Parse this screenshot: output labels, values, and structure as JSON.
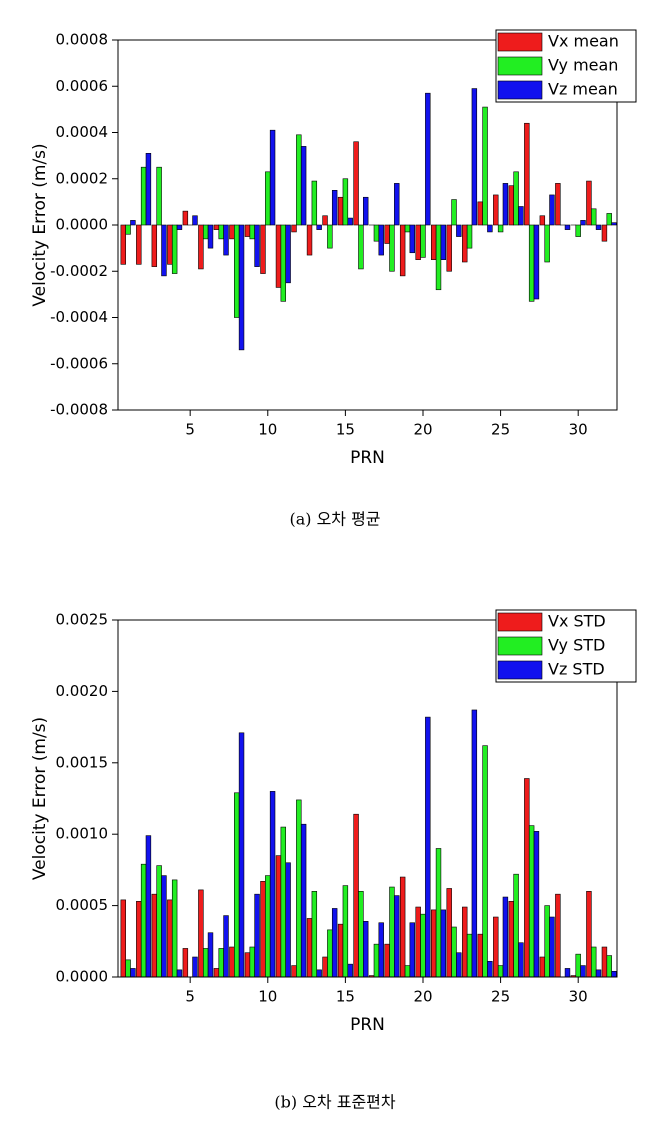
{
  "chart_data": [
    {
      "type": "bar",
      "caption": "(a) 오차 평균",
      "xlabel": "PRN",
      "ylabel": "Velocity Error (m/s)",
      "x": [
        1,
        2,
        3,
        4,
        5,
        6,
        7,
        8,
        9,
        10,
        11,
        12,
        13,
        14,
        15,
        16,
        17,
        18,
        19,
        20,
        21,
        22,
        23,
        24,
        25,
        26,
        27,
        28,
        29,
        30,
        31,
        32
      ],
      "series": [
        {
          "name": "Vx mean",
          "color": "#ee1c1c",
          "values": [
            -0.00017,
            -0.00017,
            -0.00018,
            -0.00017,
            6e-05,
            -0.00019,
            -2e-05,
            -6e-05,
            -5e-05,
            -0.00021,
            -0.00027,
            -3e-05,
            -0.00013,
            4e-05,
            0.00012,
            0.00036,
            0,
            -8e-05,
            -0.00022,
            -0.00015,
            -0.00015,
            -0.0002,
            -0.00016,
            0.0001,
            0.00013,
            0.00017,
            0.00044,
            4e-05,
            0.00018,
            0,
            0.00019,
            -7e-05
          ]
        },
        {
          "name": "Vy mean",
          "color": "#22ee22",
          "values": [
            -4e-05,
            0.00025,
            0.00025,
            -0.00021,
            0,
            -6e-05,
            -6e-05,
            -0.0004,
            -6e-05,
            0.00023,
            -0.00033,
            0.00039,
            0.00019,
            -0.0001,
            0.0002,
            -0.00019,
            -7e-05,
            -0.0002,
            -3e-05,
            -0.00014,
            -0.00028,
            0.00011,
            -0.0001,
            0.00051,
            -3e-05,
            0.00023,
            -0.00033,
            -0.00016,
            0,
            -5e-05,
            7e-05,
            5e-05
          ]
        },
        {
          "name": "Vz mean",
          "color": "#1212ee",
          "values": [
            2e-05,
            0.00031,
            -0.00022,
            -2e-05,
            4e-05,
            -0.0001,
            -0.00013,
            -0.00054,
            -0.00018,
            0.00041,
            -0.00025,
            0.00034,
            -2e-05,
            0.00015,
            3e-05,
            0.00012,
            -0.00013,
            0.00018,
            -0.00012,
            0.00057,
            -0.00015,
            -5e-05,
            0.00059,
            -3e-05,
            0.00018,
            8e-05,
            -0.00032,
            0.00013,
            -2e-05,
            2e-05,
            -2e-05,
            1e-05
          ]
        }
      ],
      "xlim": [
        0.35,
        32.5
      ],
      "xticks": [
        5,
        10,
        15,
        20,
        25,
        30
      ],
      "ylim": [
        -0.0008,
        0.0008
      ],
      "yticks": [
        -0.0008,
        -0.0006,
        -0.0004,
        -0.0002,
        {
          "value": 0,
          "label": "0.0000"
        },
        0.0002,
        0.0004,
        0.0006,
        0.0008
      ],
      "legend": "upper right"
    },
    {
      "type": "bar",
      "caption": "(b) 오차 표준편차",
      "xlabel": "PRN",
      "ylabel": "Velocity Error (m/s)",
      "x": [
        1,
        2,
        3,
        4,
        5,
        6,
        7,
        8,
        9,
        10,
        11,
        12,
        13,
        14,
        15,
        16,
        17,
        18,
        19,
        20,
        21,
        22,
        23,
        24,
        25,
        26,
        27,
        28,
        29,
        30,
        31,
        32
      ],
      "series": [
        {
          "name": "Vx STD",
          "color": "#ee1c1c",
          "values": [
            0.00054,
            0.00053,
            0.00058,
            0.00054,
            0.0002,
            0.00061,
            6e-05,
            0.00021,
            0.00017,
            0.00067,
            0.00085,
            8e-05,
            0.00041,
            0.00014,
            0.00037,
            0.00114,
            1e-05,
            0.00023,
            0.0007,
            0.00049,
            0.00047,
            0.00062,
            0.00049,
            0.0003,
            0.00042,
            0.00053,
            0.00139,
            0.00014,
            0.00058,
            1e-05,
            0.0006,
            0.00021
          ]
        },
        {
          "name": "Vy STD",
          "color": "#22ee22",
          "values": [
            0.00012,
            0.00079,
            0.00078,
            0.00068,
            0,
            0.0002,
            0.0002,
            0.00129,
            0.00021,
            0.00071,
            0.00105,
            0.00124,
            0.0006,
            0.00033,
            0.00064,
            0.0006,
            0.00023,
            0.00063,
            8e-05,
            0.00044,
            0.0009,
            0.00035,
            0.0003,
            0.00162,
            8e-05,
            0.00072,
            0.00106,
            0.0005,
            0,
            0.00016,
            0.00021,
            0.00015
          ]
        },
        {
          "name": "Vz STD",
          "color": "#1212ee",
          "values": [
            6e-05,
            0.00099,
            0.00071,
            5e-05,
            0.00014,
            0.00031,
            0.00043,
            0.00171,
            0.00058,
            0.0013,
            0.0008,
            0.00107,
            5e-05,
            0.00048,
            9e-05,
            0.00039,
            0.00038,
            0.00057,
            0.00038,
            0.00182,
            0.00047,
            0.00017,
            0.00187,
            0.00011,
            0.00056,
            0.00024,
            0.00102,
            0.00042,
            6e-05,
            8e-05,
            5e-05,
            4e-05
          ]
        }
      ],
      "xlim": [
        0.35,
        32.5
      ],
      "xticks": [
        5,
        10,
        15,
        20,
        25,
        30
      ],
      "ylim": [
        0,
        0.0025
      ],
      "yticks": [
        {
          "value": 0,
          "label": "0.0000"
        },
        0.0005,
        {
          "value": 0.001,
          "label": "0.0010"
        },
        0.0015,
        {
          "value": 0.002,
          "label": "0.0020"
        },
        0.0025
      ],
      "legend": "upper right"
    }
  ]
}
